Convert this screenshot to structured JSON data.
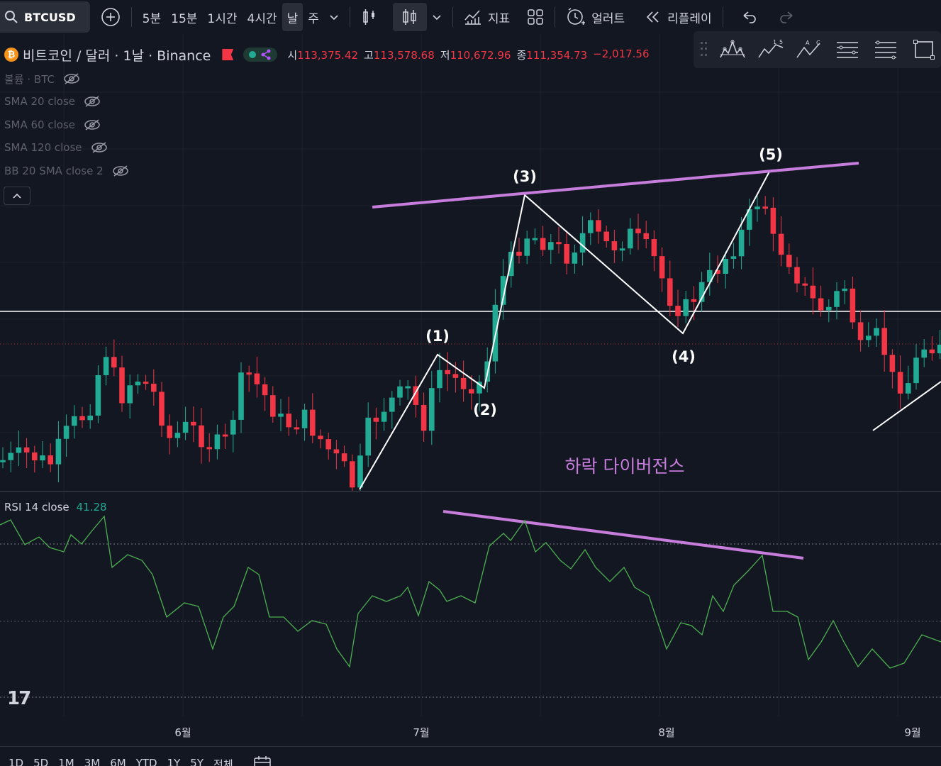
{
  "toolbar": {
    "symbol": "BTCUSD",
    "intervals": [
      "5분",
      "15분",
      "1시간",
      "4시간",
      "날",
      "주"
    ],
    "active_interval": "날",
    "indicators_label": "지표",
    "alert_label": "얼러트",
    "replay_label": "리플레이",
    "icons": [
      "search-icon",
      "add-symbol-icon",
      "chevron-down-icon",
      "bar-chart-icon",
      "candle-chart-icon",
      "indicators-icon",
      "layout-grid-icon",
      "alert-clock-icon",
      "replay-icon",
      "undo-icon",
      "redo-icon"
    ]
  },
  "legend": {
    "pair": "비트코인 / 달러 · 1날 · Binance",
    "open_label": "시",
    "open": "113,375.42",
    "high_label": "고",
    "high": "113,578.68",
    "low_label": "저",
    "low": "110,672.96",
    "close_label": "종",
    "close": "111,354.73",
    "change": "−2,017.56"
  },
  "indicators": [
    {
      "label": "볼륨 · BTC"
    },
    {
      "label": "SMA 20 close"
    },
    {
      "label": "SMA 60 close"
    },
    {
      "label": "SMA 120 close"
    },
    {
      "label": "BB 20 SMA close 2"
    }
  ],
  "rsi": {
    "label": "RSI 14 close",
    "value": "41.28"
  },
  "annotations": {
    "wave_labels": [
      "(1)",
      "(2)",
      "(3)",
      "(4)",
      "(5)"
    ],
    "divergence": "하락 다이버전스"
  },
  "months": [
    "6월",
    "7월",
    "8월",
    "9월"
  ],
  "ranges": [
    "1D",
    "5D",
    "1M",
    "3M",
    "6M",
    "YTD",
    "1Y",
    "5Y",
    "전체"
  ],
  "colors": {
    "bg": "#131722",
    "up": "#22ab94",
    "down": "#f23645",
    "trendline": "#c77ddb",
    "rsi_line": "#4caf50",
    "wave": "#ffffff"
  },
  "logo": "17"
}
